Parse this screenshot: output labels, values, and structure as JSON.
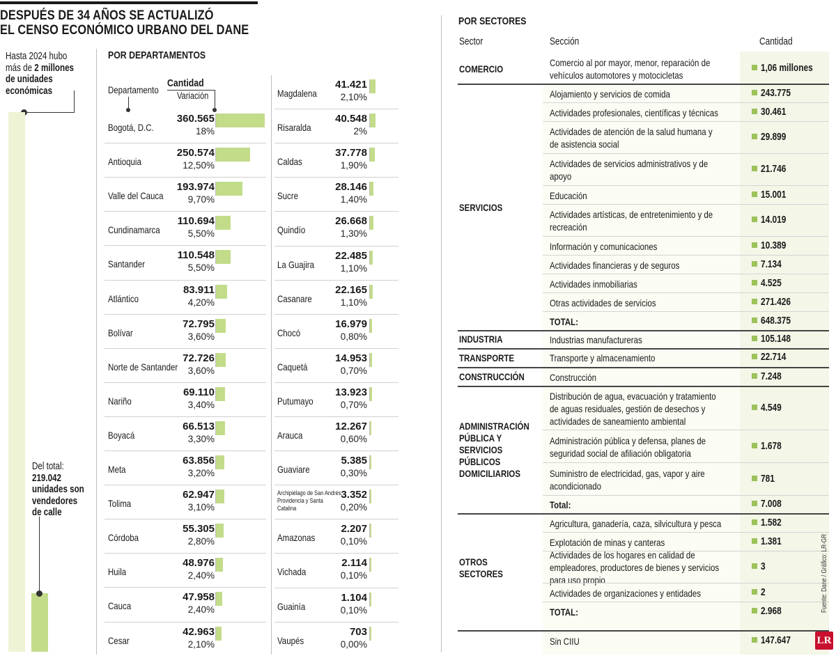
{
  "title": [
    "DESPUÉS DE 34 AÑOS SE ACTUALIZÓ",
    "EL CENSO ECONÓMICO URBANO DEL DANE"
  ],
  "intro": [
    "Hasta 2024 hubo",
    "más de 2 millones",
    "de unidades",
    "económicas"
  ],
  "sub": [
    "Del total:",
    "219.042",
    "unidades son",
    "vendedores",
    "de calle"
  ],
  "departments_heading": "POR DEPARTAMENTOS",
  "dep_headers": {
    "department": "Departamento",
    "quantity": "Cantidad",
    "variation": "Variación"
  },
  "sectors_heading": "POR SECTORES",
  "sector_headers": {
    "sector": "Sector",
    "section": "Sección",
    "quantity": "Cantidad"
  },
  "credit": "Fuente: Dane / Gráfico: LR-GR",
  "logo": "LR",
  "accent_color": "#c3dc8a",
  "chart_data": {
    "type": "bar",
    "title": "POR DEPARTAMENTOS",
    "series": [
      {
        "name": "Cantidad",
        "values": [
          360565,
          250574,
          193974,
          110694,
          110548,
          83911,
          72795,
          72726,
          69110,
          66513,
          63856,
          62947,
          55305,
          48976,
          47958,
          42963,
          41421,
          40548,
          37778,
          28146,
          26668,
          22485,
          22165,
          16979,
          14953,
          13923,
          12267,
          5385,
          3352,
          2207,
          2114,
          1104,
          703
        ]
      },
      {
        "name": "Variación",
        "values": [
          "18%",
          "12,50%",
          "9,70%",
          "5,50%",
          "5,50%",
          "4,20%",
          "3,60%",
          "3,60%",
          "3,40%",
          "3,30%",
          "3,20%",
          "3,10%",
          "2,80%",
          "2,40%",
          "2,40%",
          "2,10%",
          "2,10%",
          "2%",
          "1,90%",
          "1,40%",
          "1,30%",
          "1,10%",
          "1,10%",
          "0,80%",
          "0,70%",
          "0,70%",
          "0,60%",
          "0,30%",
          "0,20%",
          "0,10%",
          "0,10%",
          "0,10%",
          "0,00%"
        ]
      }
    ],
    "categories": [
      "Bogotá, D.C.",
      "Antioquia",
      "Valle del Cauca",
      "Cundinamarca",
      "Santander",
      "Atlántico",
      "Bolívar",
      "Norte de Santander",
      "Nariño",
      "Boyacá",
      "Meta",
      "Tolima",
      "Córdoba",
      "Huila",
      "Cauca",
      "Cesar",
      "Magdalena",
      "Risaralda",
      "Caldas",
      "Sucre",
      "Quindío",
      "La Guajira",
      "Casanare",
      "Chocó",
      "Caquetá",
      "Putumayo",
      "Arauca",
      "Guaviare",
      "Archipiélago de San Andrés, Providencia y Santa Catalina",
      "Amazonas",
      "Vichada",
      "Guainía",
      "Vaupés"
    ],
    "display_values": [
      "360.565",
      "250.574",
      "193.974",
      "110.694",
      "110.548",
      "83.911",
      "72.795",
      "72.726",
      "69.110",
      "66.513",
      "63.856",
      "62.947",
      "55.305",
      "48.976",
      "47.958",
      "42.963",
      "41.421",
      "40.548",
      "37.778",
      "28.146",
      "26.668",
      "22.485",
      "22.165",
      "16.979",
      "14.953",
      "13.923",
      "12.267",
      "5.385",
      "3.352",
      "2.207",
      "2.114",
      "1.104",
      "703"
    ],
    "totals": {
      "units_total": 2000000,
      "street_vendors": 219042
    }
  },
  "sectors": [
    {
      "sector": [
        "COMERCIO"
      ],
      "rows": [
        {
          "section": [
            "Comercio al por mayor, menor, reparación de",
            "vehículos automotores y motocicletas"
          ],
          "qty": "1,06 millones"
        }
      ]
    },
    {
      "sector": [
        "SERVICIOS"
      ],
      "rows": [
        {
          "section": [
            "Alojamiento y servicios de comida"
          ],
          "qty": "243.775"
        },
        {
          "section": [
            "Actividades profesionales, científicas y técnicas"
          ],
          "qty": "30.461"
        },
        {
          "section": [
            "Actividades de atención de la salud humana y",
            "de asistencia social"
          ],
          "qty": "29.899"
        },
        {
          "section": [
            "Actividades de servicios administrativos y de",
            "apoyo"
          ],
          "qty": "21.746"
        },
        {
          "section": [
            "Educación"
          ],
          "qty": "15.001"
        },
        {
          "section": [
            "Actividades artísticas, de entretenimiento y de",
            "recreación"
          ],
          "qty": "14.019"
        },
        {
          "section": [
            "Información y comunicaciones"
          ],
          "qty": "10.389"
        },
        {
          "section": [
            "Actividades financieras y de seguros"
          ],
          "qty": "7.134"
        },
        {
          "section": [
            "Actividades inmobiliarias"
          ],
          "qty": "4.525"
        },
        {
          "section": [
            "Otras actividades de servicios"
          ],
          "qty": "271.426"
        },
        {
          "section": [
            "TOTAL:"
          ],
          "qty": "648.375",
          "total": true
        }
      ]
    },
    {
      "sector": [
        "INDUSTRIA"
      ],
      "rows": [
        {
          "section": [
            "Industrias manufactureras"
          ],
          "qty": "105.148"
        }
      ]
    },
    {
      "sector": [
        "TRANSPORTE"
      ],
      "rows": [
        {
          "section": [
            "Transporte y almacenamiento"
          ],
          "qty": "22.714"
        }
      ]
    },
    {
      "sector": [
        "CONSTRUCCIÓN"
      ],
      "rows": [
        {
          "section": [
            "Construcción"
          ],
          "qty": "7.248"
        }
      ]
    },
    {
      "sector": [
        "ADMINISTRACIÓN",
        "PÚBLICA Y",
        "SERVICIOS",
        "PÚBLICOS",
        "DOMICILIARIOS"
      ],
      "rows": [
        {
          "section": [
            "Distribución de agua, evacuación y tratamiento",
            "de aguas residuales, gestión de desechos y",
            "actividades de saneamiento ambiental"
          ],
          "qty": "4.549"
        },
        {
          "section": [
            "Administración pública y defensa, planes de",
            "seguridad social de afiliación obligatoria"
          ],
          "qty": "1.678"
        },
        {
          "section": [
            "Suministro de electricidad, gas, vapor y aire",
            "acondicionado"
          ],
          "qty": "781"
        },
        {
          "section": [
            "Total:"
          ],
          "qty": "7.008",
          "total": true
        }
      ]
    },
    {
      "sector": [
        "OTROS",
        "SECTORES"
      ],
      "rows": [
        {
          "section": [
            "Agricultura, ganadería, caza, silvicultura y pesca"
          ],
          "qty": "1.582"
        },
        {
          "section": [
            "Explotación de minas y canteras"
          ],
          "qty": "1.381"
        },
        {
          "section": [
            "Actividades de los hogares en calidad de",
            "empleadores, productores de bienes y servicios",
            "para uso propio"
          ],
          "qty": "3"
        },
        {
          "section": [
            "Actividades de organizaciones y entidades"
          ],
          "qty": "2"
        },
        {
          "section": [
            "TOTAL:"
          ],
          "qty": "2.968",
          "total": true
        }
      ]
    },
    {
      "sector": [],
      "rows": [
        {
          "section": [
            "Sin CIIU"
          ],
          "qty": "147.647"
        }
      ]
    }
  ]
}
